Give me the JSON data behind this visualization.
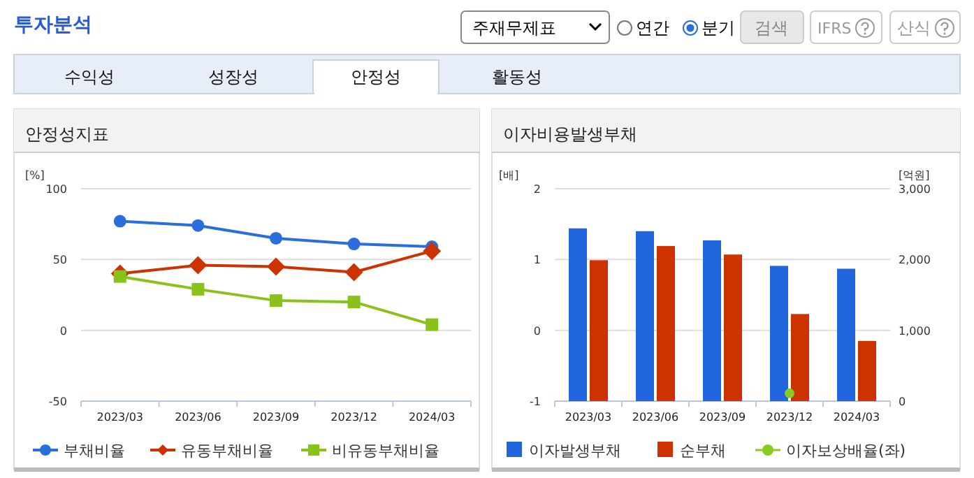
{
  "chart_data": [
    {
      "type": "other",
      "title": "투자분석",
      "annotations": [
        "주재무제표",
        "연간",
        "분기",
        "검색",
        "IFRS",
        "산식",
        "수익성",
        "성장성",
        "안정성",
        "활동성"
      ]
    },
    {
      "type": "line",
      "title": "안정성지표",
      "ylabel": "[%]",
      "categories": [
        "2023/03",
        "2023/06",
        "2023/09",
        "2023/12",
        "2024/03"
      ],
      "ylim": [
        -50,
        100
      ],
      "yticks": [
        -50,
        0,
        50,
        100
      ],
      "grid": "y",
      "legend": "bottom",
      "series": [
        {
          "name": "부채비율",
          "color": "#2a6ddc",
          "marker": "circle",
          "values": [
            77,
            74,
            65,
            61,
            59
          ]
        },
        {
          "name": "유동부채비율",
          "color": "#cc3300",
          "marker": "diamond",
          "values": [
            40,
            46,
            45,
            41,
            56
          ]
        },
        {
          "name": "비유동부채비율",
          "color": "#88c21a",
          "marker": "square",
          "values": [
            38,
            29,
            21,
            20,
            4
          ]
        }
      ]
    },
    {
      "type": "bar",
      "title": "이자비용발생부채",
      "ylabel": "[배]",
      "y2label": "[억원]",
      "categories": [
        "2023/03",
        "2023/06",
        "2023/09",
        "2023/12",
        "2024/03"
      ],
      "ylim": [
        -1,
        2
      ],
      "yticks": [
        -1,
        0,
        1,
        2
      ],
      "y2lim": [
        0,
        3000
      ],
      "y2ticks": [
        0,
        {
          "value": 1000,
          "label": "1,000"
        },
        {
          "value": 2000,
          "label": "2,000"
        },
        {
          "value": 3000,
          "label": "3,000"
        }
      ],
      "grid": "y",
      "legend": "bottom",
      "series": [
        {
          "name": "이자발생부채",
          "color": "#2266dd",
          "axis": "y2",
          "values": [
            2440,
            2400,
            2270,
            1910,
            1870
          ]
        },
        {
          "name": "순부채",
          "color": "#cc3300",
          "axis": "y2",
          "values": [
            1990,
            2190,
            2070,
            1230,
            850
          ]
        },
        {
          "name": "이자보상배율(좌)",
          "type": "scatter",
          "marker": "circle",
          "color": "#88cc22",
          "values": [
            null,
            null,
            null,
            -0.89,
            null
          ]
        }
      ]
    }
  ]
}
